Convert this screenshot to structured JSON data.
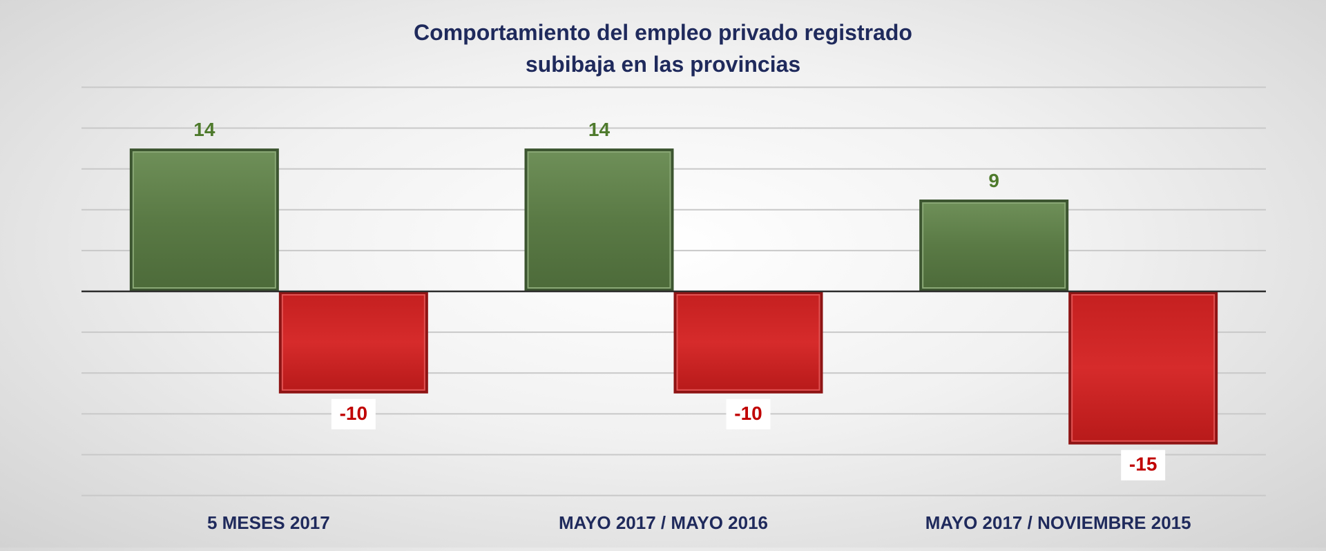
{
  "chart_data": {
    "type": "bar",
    "title_line1": "Comportamiento del empleo privado registrado",
    "title_line2": "subibaja en las provincias",
    "xlabel": "",
    "ylabel": "",
    "categories": [
      "5 MESES 2017",
      "MAYO 2017 / MAYO 2016",
      "MAYO 2017 / NOVIEMBRE 2015"
    ],
    "series": [
      {
        "values": [
          14,
          14,
          9
        ],
        "color": "#5f7f4a",
        "label_color": "#4e7a2c"
      },
      {
        "values": [
          -10,
          -10,
          -15
        ],
        "color": "#d42a2a",
        "label_color": "#c00000"
      }
    ],
    "ylim": [
      -20,
      20
    ],
    "grid": true,
    "legend": "none"
  }
}
